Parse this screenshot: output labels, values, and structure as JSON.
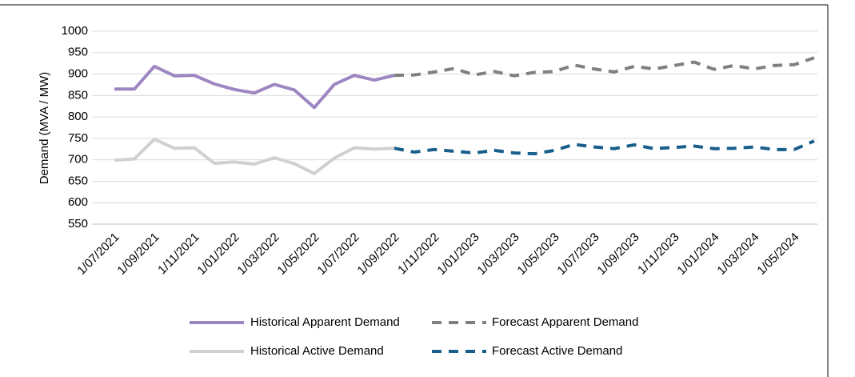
{
  "chart_data": {
    "type": "line",
    "y_label": "Demand (MVA / MW)",
    "categories": [
      "1/07/2021",
      null,
      "1/09/2021",
      null,
      "1/11/2021",
      null,
      "1/01/2022",
      null,
      "1/03/2022",
      null,
      "1/05/2022",
      null,
      "1/07/2022",
      null,
      "1/09/2022",
      null,
      "1/11/2022",
      null,
      "1/01/2023",
      null,
      "1/03/2023",
      null,
      "1/05/2023",
      null,
      "1/07/2023",
      null,
      "1/09/2023",
      null,
      "1/11/2023",
      null,
      "1/01/2024",
      null,
      "1/03/2024",
      null,
      "1/05/2024",
      null
    ],
    "series": [
      {
        "name": "Historical Apparent Demand",
        "color": "#9e86c2",
        "dashed": false,
        "values": [
          865,
          865,
          918,
          896,
          897,
          877,
          864,
          856,
          876,
          863,
          822,
          876,
          897,
          886,
          897,
          null,
          null,
          null,
          null,
          null,
          null,
          null,
          null,
          null,
          null,
          null,
          null,
          null,
          null,
          null,
          null,
          null,
          null,
          null,
          null,
          null
        ]
      },
      {
        "name": "Forecast Apparent Demand",
        "color": "#808080",
        "dashed": true,
        "values": [
          null,
          null,
          null,
          null,
          null,
          null,
          null,
          null,
          null,
          null,
          null,
          null,
          null,
          null,
          897,
          898,
          905,
          913,
          898,
          906,
          896,
          904,
          906,
          921,
          912,
          905,
          918,
          912,
          920,
          928,
          911,
          920,
          912,
          920,
          922,
          938
        ]
      },
      {
        "name": "Historical Active Demand",
        "color": "#d0d0d0",
        "dashed": false,
        "values": [
          699,
          702,
          748,
          727,
          728,
          692,
          695,
          690,
          705,
          691,
          668,
          704,
          728,
          725,
          727,
          null,
          null,
          null,
          null,
          null,
          null,
          null,
          null,
          null,
          null,
          null,
          null,
          null,
          null,
          null,
          null,
          null,
          null,
          null,
          null,
          null
        ]
      },
      {
        "name": "Forecast Active Demand",
        "color": "#1a5f8c",
        "dashed": true,
        "values": [
          null,
          null,
          null,
          null,
          null,
          null,
          null,
          null,
          null,
          null,
          null,
          null,
          null,
          null,
          727,
          718,
          724,
          720,
          716,
          722,
          716,
          714,
          722,
          736,
          730,
          726,
          735,
          726,
          729,
          732,
          726,
          727,
          730,
          724,
          724,
          744
        ]
      }
    ],
    "ylim": [
      550,
      1000
    ],
    "yticks": [
      550,
      600,
      650,
      700,
      750,
      800,
      850,
      900,
      950,
      1000
    ],
    "grid": true
  }
}
